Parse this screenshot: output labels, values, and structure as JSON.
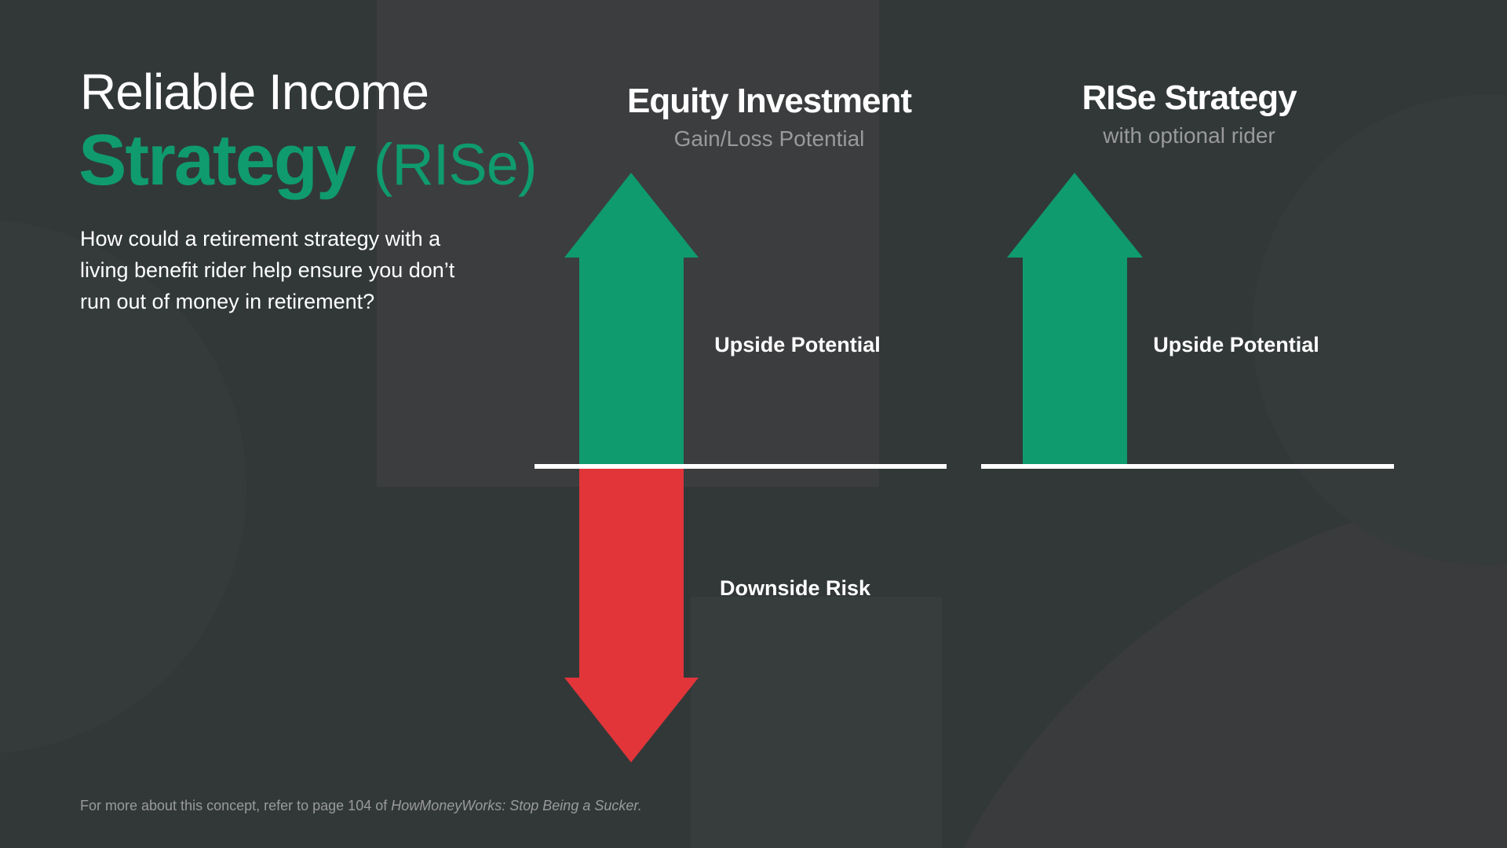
{
  "title": {
    "line1": "Reliable Income",
    "line2": "Strategy",
    "abbr": "(RISe)"
  },
  "question": "How could a retirement strategy with a living benefit rider help ensure you don’t run out of money in retirement?",
  "columns": [
    {
      "heading": "Equity Investment",
      "subheading": "Gain/Loss Potential",
      "upside_label": "Upside Potential",
      "downside_label": "Downside Risk"
    },
    {
      "heading": "RISe Strategy",
      "subheading": "with optional rider",
      "upside_label": "Upside Potential"
    }
  ],
  "footer": {
    "text": "For more about this concept, refer to page 104 of ",
    "book": "HowMoneyWorks: Stop Being a Sucker."
  },
  "colors": {
    "background": "#323838",
    "panel": "#3c3d3f",
    "green": "#0f9b6e",
    "red": "#e1353a",
    "white": "#ffffff"
  },
  "icons": [
    "up-arrow",
    "down-arrow"
  ]
}
